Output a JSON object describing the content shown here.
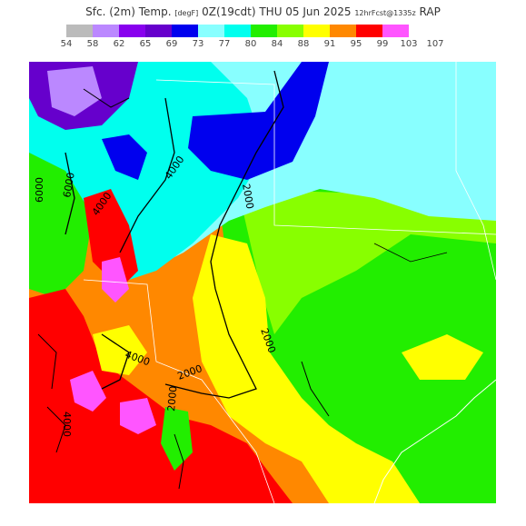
{
  "header": {
    "title_main": "Sfc. (2m) Temp.",
    "units": "[degF]",
    "init": "0Z(19cdt)",
    "valid_date": "THU 05 Jun 2025",
    "run_info": "12hrFcst@1335z",
    "model": "RAP"
  },
  "legend": {
    "colors": [
      "#bbbbbb",
      "#bb88ff",
      "#8800ee",
      "#6600cc",
      "#0000ee",
      "#88ffff",
      "#00ffee",
      "#22ee00",
      "#88ff00",
      "#ffff00",
      "#ff8800",
      "#ff0000",
      "#ff55ff"
    ],
    "ticks": [
      "54",
      "58",
      "62",
      "65",
      "69",
      "73",
      "77",
      "80",
      "84",
      "88",
      "91",
      "95",
      "99",
      "103",
      "107"
    ]
  },
  "map": {
    "contour_labels": [
      "6000",
      "4000",
      "4000",
      "2000",
      "2000",
      "2000",
      "4000",
      "6000",
      "4000",
      "2000"
    ],
    "colors": {
      "magenta": "#ff55ff",
      "red": "#ff0000",
      "orange": "#ff8800",
      "yellow": "#ffff00",
      "light_green": "#88ff00",
      "green": "#22ee00",
      "cyan": "#00ffee",
      "light_cyan": "#88ffff",
      "blue": "#0000ee",
      "purple": "#6600cc",
      "lavender": "#bb88ff"
    }
  }
}
